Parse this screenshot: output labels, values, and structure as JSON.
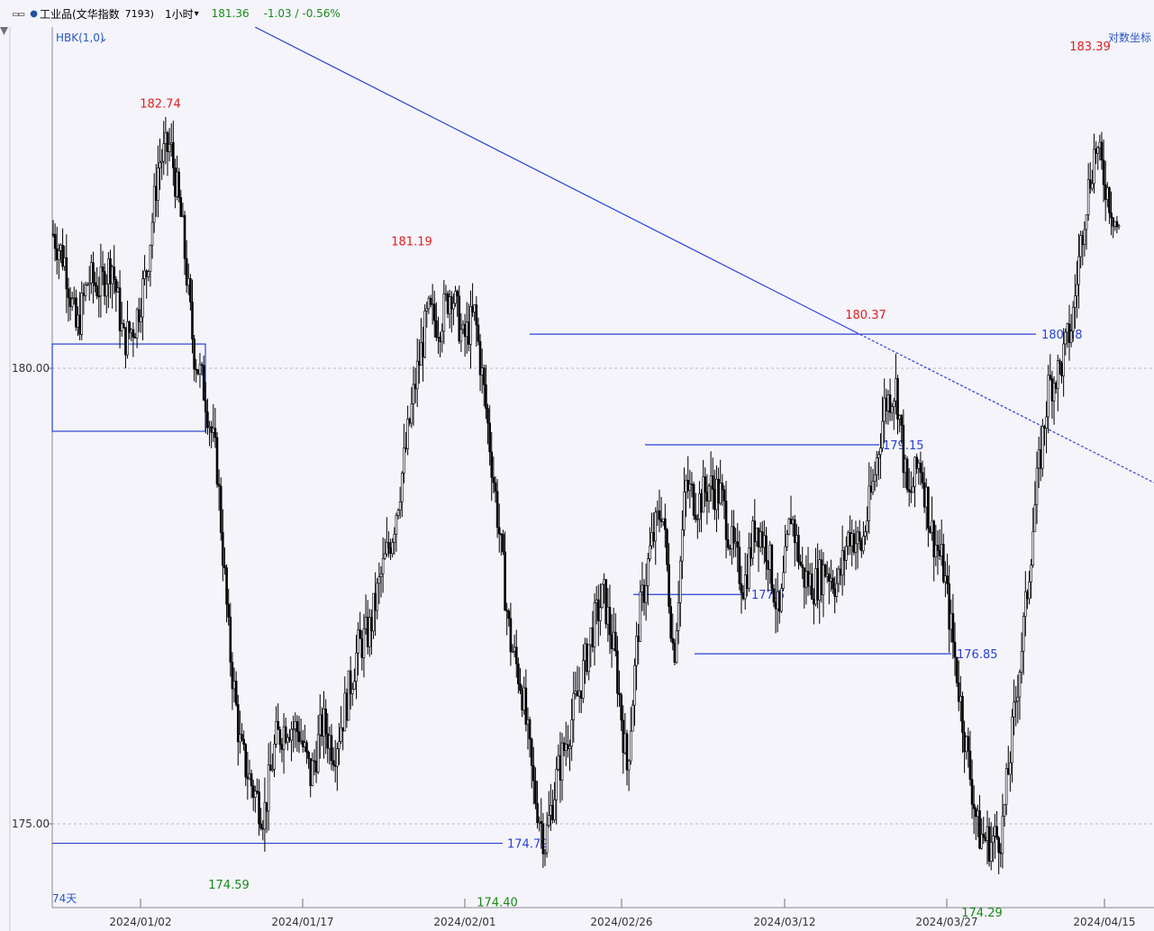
{
  "toolbar": {
    "window_icon": "window-restore-icon",
    "symbol": "工业品(文华指数",
    "code": "7193)",
    "timeframe": "1小时",
    "price": "181.36",
    "change": "-1.03 / -0.56%"
  },
  "indicator_label": "HBK(1,0)",
  "log_scale_label": "对数坐标",
  "period_label": "74天",
  "colors": {
    "candle": "#000000",
    "trendline": "#2a3fd6",
    "high_label": "#e02020",
    "low_label": "#1a8a1a",
    "level_label": "#2a3fd6",
    "background": "#f4f4fa"
  },
  "chart_data": {
    "type": "candlestick",
    "title": "",
    "xlabel": "",
    "ylabel": "",
    "log_scale": true,
    "ylim": [
      174.0,
      183.6
    ],
    "x_ticks": [
      "2024/01/02",
      "2024/01/17",
      "2024/02/01",
      "2024/02/26",
      "2024/03/12",
      "2024/03/27",
      "2024/04/15"
    ],
    "y_ticks": [
      175.0,
      180.0
    ],
    "y_tick_labels": [
      "175.00",
      "180.00"
    ],
    "grid": {
      "horizontal_dashed": [
        175.0,
        180.0
      ],
      "vertical": false
    },
    "close_series": [
      181.5,
      181.2,
      180.4,
      181.0,
      180.9,
      181.2,
      180.3,
      180.5,
      181.1,
      182.3,
      182.5,
      181.6,
      180.2,
      179.7,
      178.9,
      177.0,
      175.8,
      175.4,
      175.1,
      175.9,
      176.1,
      176.0,
      175.5,
      176.1,
      175.8,
      176.3,
      176.9,
      177.1,
      177.7,
      178.2,
      179.0,
      179.9,
      180.6,
      180.5,
      180.9,
      180.3,
      180.6,
      179.5,
      178.3,
      177.0,
      176.5,
      175.4,
      174.8,
      175.5,
      176.0,
      176.5,
      177.1,
      177.5,
      176.8,
      175.6,
      177.2,
      178.0,
      178.5,
      176.8,
      178.7,
      178.5,
      178.7,
      178.6,
      178.0,
      177.6,
      178.3,
      178.0,
      177.2,
      178.4,
      177.7,
      177.6,
      177.8,
      177.6,
      178.2,
      178.0,
      178.7,
      179.6,
      179.8,
      178.5,
      179.0,
      178.2,
      177.8,
      176.8,
      175.8,
      174.9,
      174.8,
      174.9,
      176.1,
      177.3,
      178.7,
      179.8,
      180.0,
      180.5,
      181.7,
      182.5,
      182.0,
      181.5
    ],
    "highs": [
      {
        "label": "182.74",
        "value": 182.74
      },
      {
        "label": "181.19",
        "value": 181.19
      },
      {
        "label": "180.37",
        "value": 180.37
      },
      {
        "label": "183.39",
        "value": 183.39
      }
    ],
    "lows": [
      {
        "label": "174.59",
        "value": 174.59
      },
      {
        "label": "174.40",
        "value": 174.4
      },
      {
        "label": "174.29",
        "value": 174.29
      }
    ],
    "levels": [
      {
        "label": "174.79",
        "value": 174.79
      },
      {
        "label": "176.85",
        "value": 176.85
      },
      {
        "label": "177.5",
        "value": 177.5
      },
      {
        "label": "179.15",
        "value": 179.15
      },
      {
        "label": "180.38",
        "value": 180.38
      }
    ],
    "box_range": [
      179.3,
      180.27
    ],
    "trendline": {
      "start_value": 184.0,
      "end_value": 178.8
    }
  }
}
